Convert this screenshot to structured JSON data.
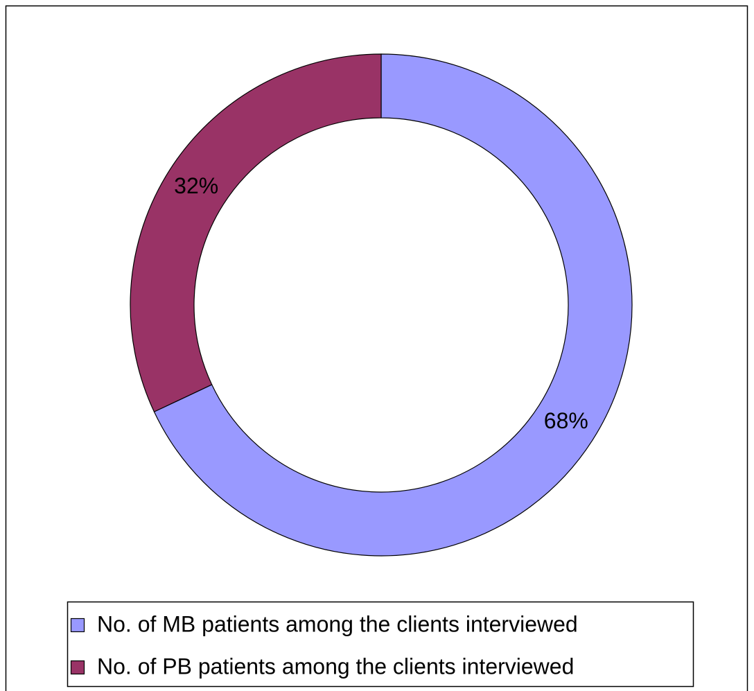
{
  "chart_data": {
    "type": "donut",
    "categories": [
      "No. of MB patients among the clients interviewed",
      "No. of PB patients among the clients interviewed"
    ],
    "values": [
      68,
      32
    ],
    "value_labels": [
      "68%",
      "32%"
    ],
    "colors": [
      "#9999ff",
      "#993366"
    ],
    "legend": "bottom"
  }
}
